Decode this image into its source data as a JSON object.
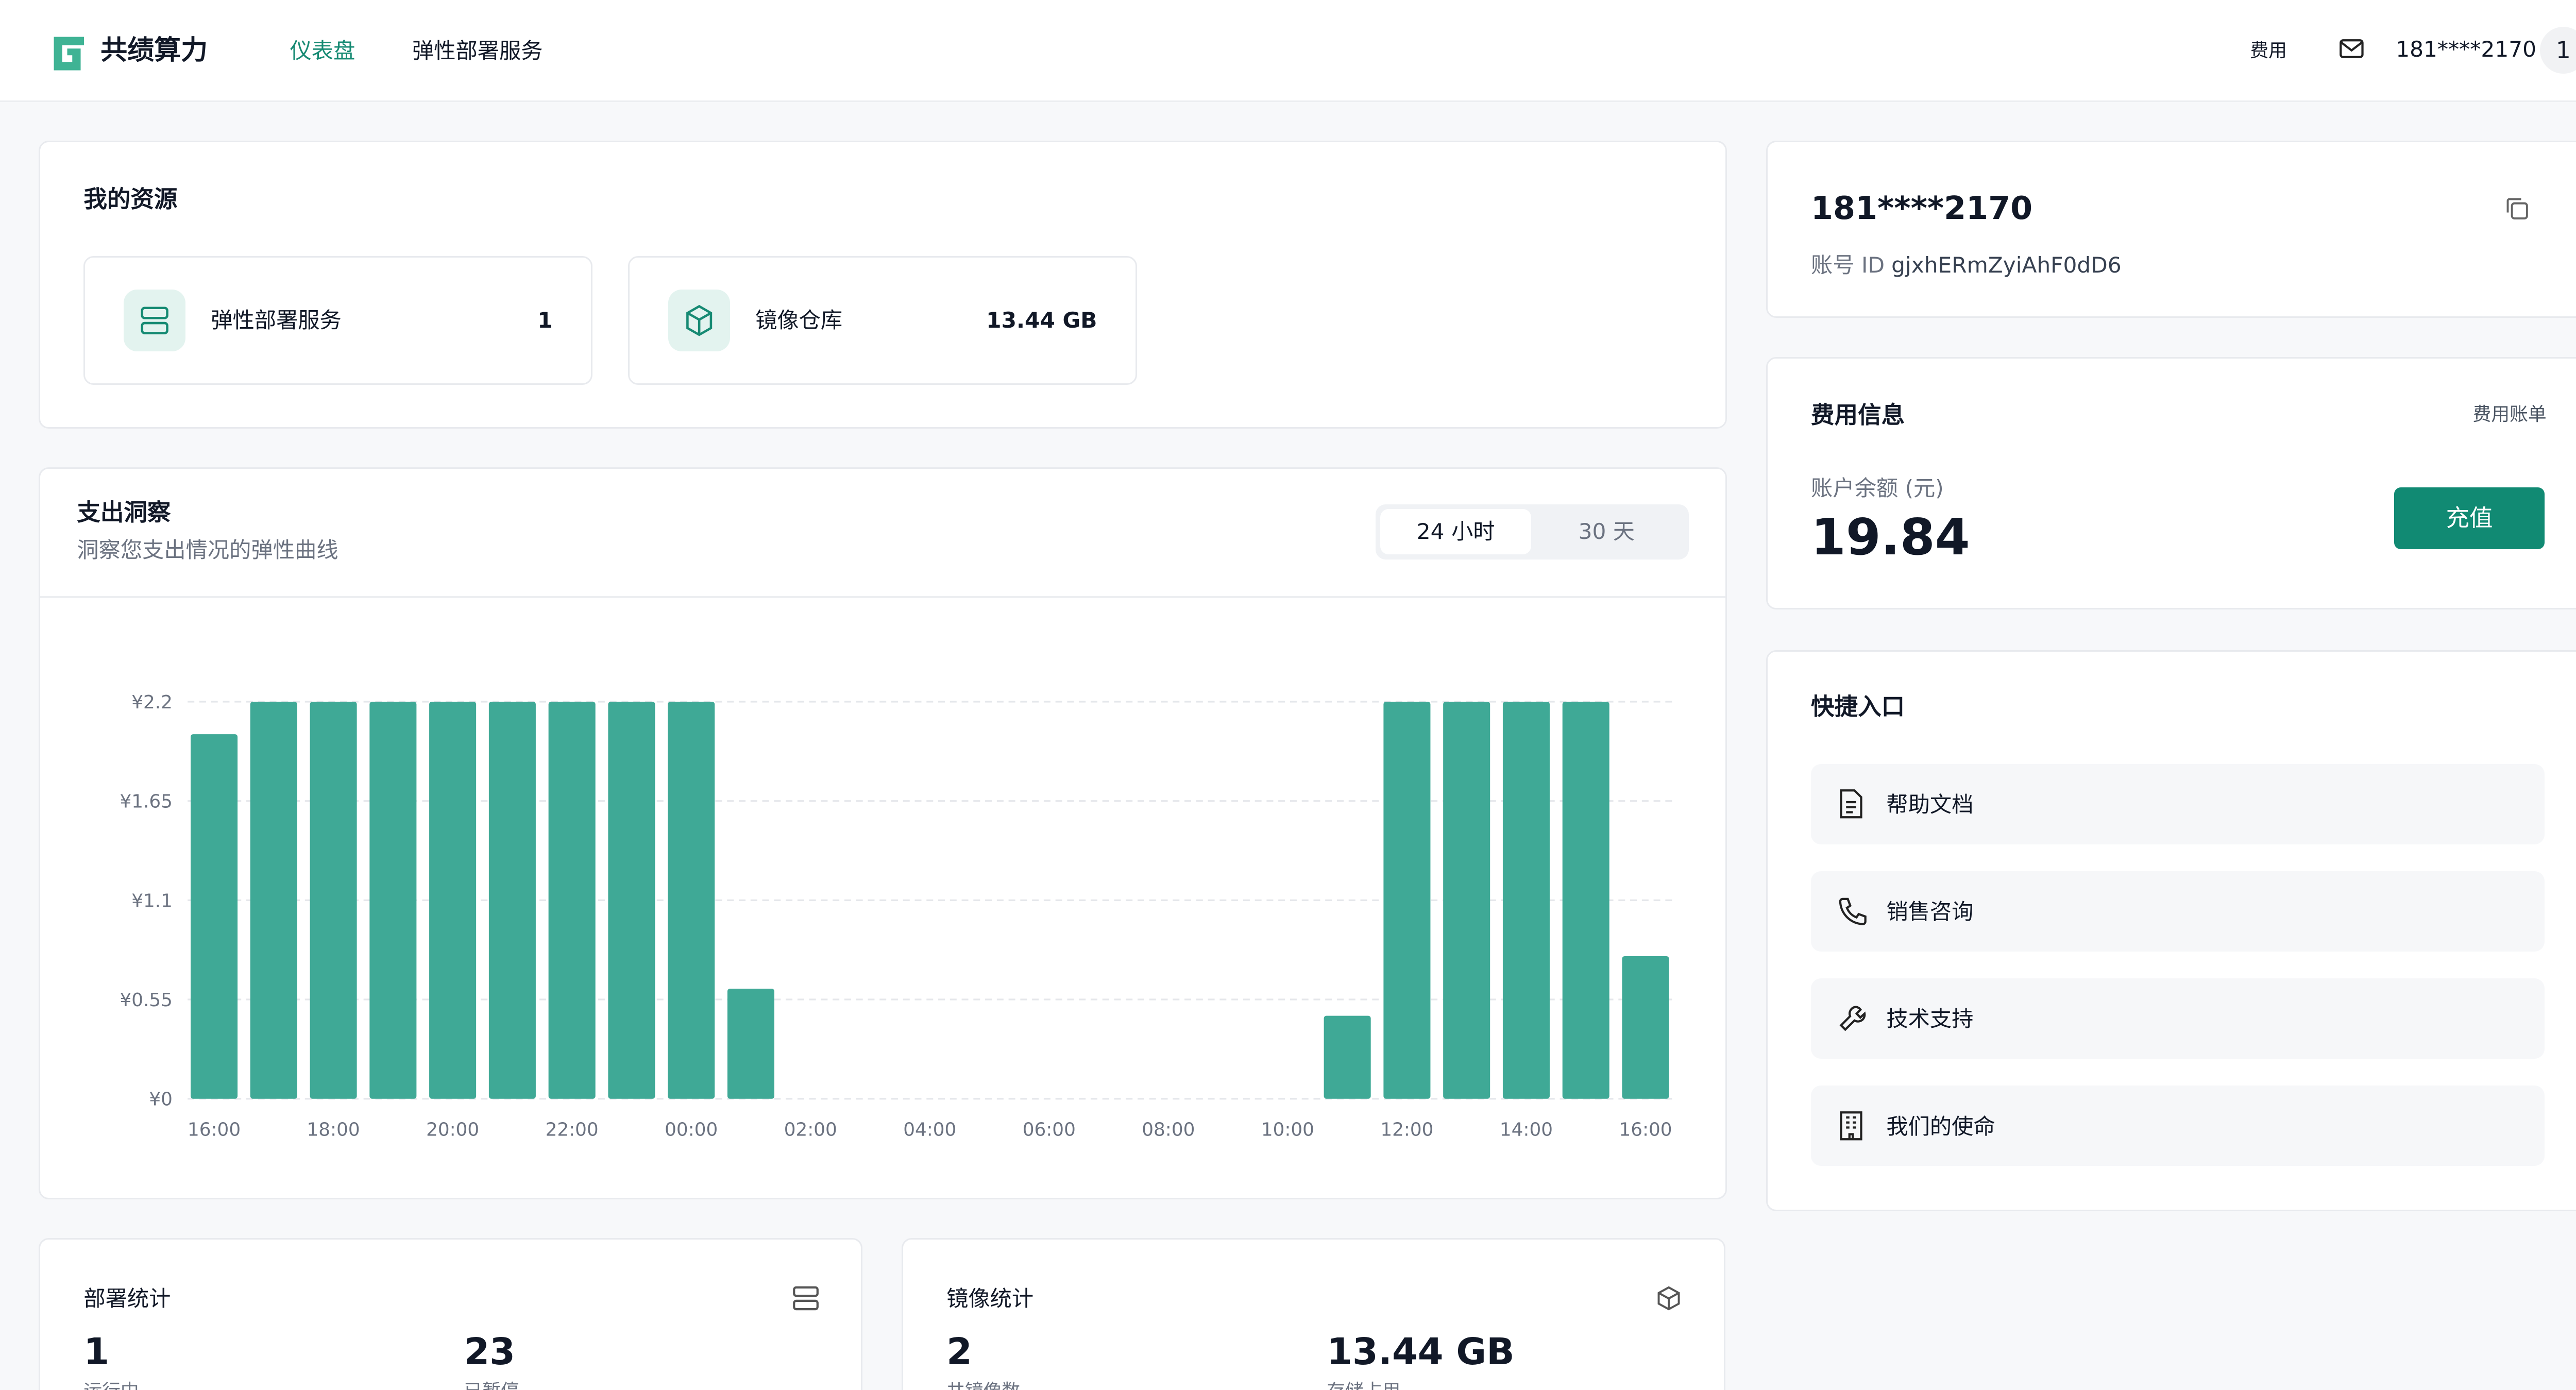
{
  "header": {
    "brand": "共绩算力",
    "nav": [
      "仪表盘",
      "弹性部署服务"
    ],
    "fee_link": "费用",
    "user": "181****2170",
    "avatar": "1"
  },
  "resources": {
    "title": "我的资源",
    "items": [
      {
        "label": "弹性部署服务",
        "value": "1"
      },
      {
        "label": "镜像仓库",
        "value": "13.44 GB"
      }
    ]
  },
  "insight": {
    "title": "支出洞察",
    "subtitle": "洞察您支出情况的弹性曲线",
    "tabs": [
      "24 小时",
      "30 天"
    ]
  },
  "chart_data": {
    "type": "bar",
    "color": "#3fa996",
    "grid": true,
    "categories": [
      "16:00",
      null,
      "18:00",
      null,
      "20:00",
      null,
      "22:00",
      null,
      "00:00",
      null,
      "02:00",
      null,
      "04:00",
      null,
      "06:00",
      null,
      "08:00",
      null,
      "10:00",
      null,
      "12:00",
      null,
      "14:00",
      null,
      "16:00"
    ],
    "values": [
      2.02,
      2.2,
      2.2,
      2.2,
      2.2,
      2.2,
      2.2,
      2.2,
      2.2,
      0.61,
      0,
      0,
      0,
      0,
      0,
      0,
      0,
      0,
      0,
      0.46,
      2.2,
      2.2,
      2.2,
      2.2,
      0.79
    ],
    "ylim": [
      0,
      2.2
    ],
    "yticks": [
      {
        "value": 0,
        "label": "¥0"
      },
      {
        "value": 0.55,
        "label": "¥0.55"
      },
      {
        "value": 1.1,
        "label": "¥1.1"
      },
      {
        "value": 1.65,
        "label": "¥1.65"
      },
      {
        "value": 2.2,
        "label": "¥2.2"
      }
    ]
  },
  "stats": [
    {
      "title": "部署统计",
      "items": [
        {
          "value": "1",
          "label": "运行中"
        },
        {
          "value": "23",
          "label": "已暂停"
        }
      ]
    },
    {
      "title": "镜像统计",
      "items": [
        {
          "value": "2",
          "label": "共镜像数"
        },
        {
          "value": "13.44 GB",
          "label": "存储占用"
        }
      ]
    }
  ],
  "account": {
    "name": "181****2170",
    "id_label": "账号 ID",
    "id": "gjxhERmZyiAhF0dD6"
  },
  "fees": {
    "title": "费用信息",
    "link": "费用账单",
    "balance_label": "账户余额 (元)",
    "balance": "19.84",
    "button": "充值"
  },
  "quick": {
    "title": "快捷入口",
    "links": [
      "帮助文档",
      "销售咨询",
      "技术支持",
      "我们的使命"
    ]
  }
}
